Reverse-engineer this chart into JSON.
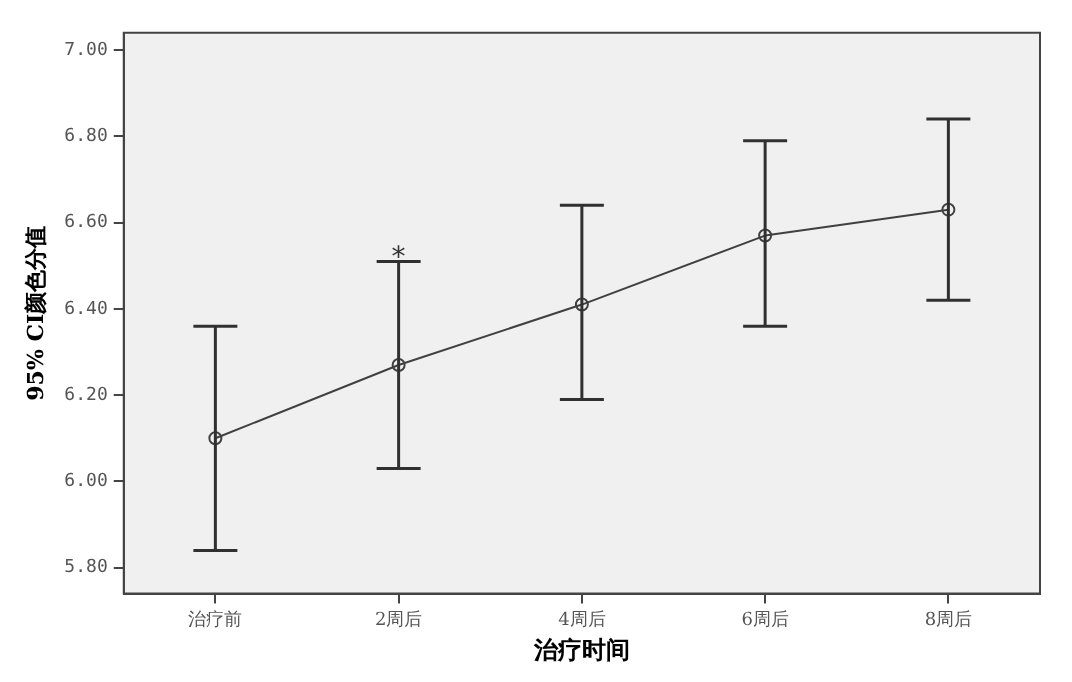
{
  "chart_data": {
    "type": "line",
    "xlabel": "治疗时间",
    "ylabel": "95% CI颜色分值",
    "categories": [
      "治疗前",
      "2周后",
      "4周后",
      "6周后",
      "8周后"
    ],
    "series": [
      {
        "color": "#404040",
        "values": [
          6.1,
          6.27,
          6.41,
          6.57,
          6.63
        ],
        "errors": [
          [
            5.84,
            6.36
          ],
          [
            6.03,
            6.51
          ],
          [
            6.19,
            6.64
          ],
          [
            6.36,
            6.79
          ],
          [
            6.42,
            6.84
          ]
        ]
      }
    ],
    "ylim": [
      5.74,
      7.04
    ],
    "yticks": [
      {
        "value": 5.8,
        "label": "5.80"
      },
      {
        "value": 6.0,
        "label": "6.00"
      },
      {
        "value": 6.2,
        "label": "6.20"
      },
      {
        "value": 6.4,
        "label": "6.40"
      },
      {
        "value": 6.6,
        "label": "6.60"
      },
      {
        "value": 6.8,
        "label": "6.80"
      },
      {
        "value": 7.0,
        "label": "7.00"
      }
    ],
    "annotations": [
      {
        "text": "*",
        "x": "2周后",
        "y": 6.53
      }
    ],
    "grid": false,
    "legend": false,
    "marker": "circle",
    "line_style": "solid"
  }
}
